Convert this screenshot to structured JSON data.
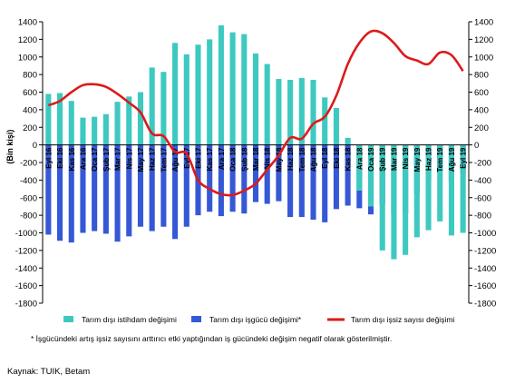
{
  "chart_data": {
    "type": "bar",
    "ylabel": "(Bin kişi)",
    "ylim": [
      -1800,
      1400
    ],
    "y_ticks": [
      1400,
      1200,
      1000,
      800,
      600,
      400,
      200,
      0,
      -200,
      -400,
      -600,
      -800,
      -1000,
      -1200,
      -1400,
      -1600,
      -1800
    ],
    "categories": [
      "Eyl 16",
      "Eki 16",
      "Kas 16",
      "Ara 16",
      "Oca 17",
      "Şub 17",
      "Mar 17",
      "Nis 17",
      "May 17",
      "Haz 17",
      "Tem 17",
      "Ağu 17",
      "Eyl 17",
      "Eki 17",
      "Kas 17",
      "Ara 17",
      "Oca 18",
      "Şub 18",
      "Mar 18",
      "Nis 18",
      "May 18",
      "Haz 18",
      "Tem 18",
      "Ağu 18",
      "Eyl 18",
      "Eki 18",
      "Kas 18",
      "Ara 18",
      "Oca 19",
      "Şub 19",
      "Mar 19",
      "Nis 19",
      "May 19",
      "Haz 19",
      "Tem 19",
      "Ağu 19",
      "Eyl 19"
    ],
    "x_tick_labels": [
      "Eyl 16",
      "Eki 16",
      "Kas 16",
      "Ara 16",
      "Oca 17",
      "Şub 17",
      "Mar 17",
      "Nis 17",
      "May 17",
      "Haz 17",
      "Tem 17",
      "Ağu 17",
      "Eyl 17",
      "Eki 17",
      "Kas 17",
      "Ara 17",
      "Oca 18",
      "Şub 18",
      "Mar 18",
      "Nis 18",
      "May 18",
      "Haz 18",
      "Tem 18",
      "Ağu 18",
      "Eyl 18",
      "Eki 18",
      "Kas 18",
      "Ara 18",
      "Oca 19",
      "Şub 19",
      "Mar 19",
      "Nis 19",
      "May 19",
      "Haz 19",
      "Tem 19",
      "Ağu 19",
      "Eyl 19"
    ],
    "series": [
      {
        "name": "Tarım dışı istihdam değişimi",
        "type": "bar",
        "color": "#3ec9c0",
        "values": [
          580,
          590,
          500,
          310,
          320,
          350,
          490,
          550,
          600,
          880,
          830,
          1160,
          1030,
          1140,
          1200,
          1360,
          1280,
          1260,
          1040,
          920,
          750,
          740,
          760,
          740,
          540,
          420,
          80,
          -520,
          -700,
          -1200,
          -1300,
          -1250,
          -1050,
          -970,
          -870,
          -1030,
          -1000
        ]
      },
      {
        "name": "Tarım dışı işgücü değişimi*",
        "type": "bar",
        "color": "#3558d6",
        "values": [
          -1020,
          -1090,
          -1110,
          -1000,
          -980,
          -1010,
          -1100,
          -1040,
          -930,
          -980,
          -930,
          -1070,
          -930,
          -800,
          -760,
          -810,
          -760,
          -780,
          -650,
          -670,
          -640,
          -820,
          -820,
          -850,
          -880,
          -730,
          -690,
          -720,
          -790,
          -680,
          -790,
          -780,
          -550,
          -400,
          -290,
          -420,
          -330
        ]
      },
      {
        "name": "Tarım dışı işsiz sayısı değişimi",
        "type": "line",
        "color": "#dd1a1a",
        "values": [
          450,
          500,
          600,
          680,
          690,
          660,
          580,
          480,
          370,
          130,
          100,
          -80,
          -100,
          -400,
          -500,
          -560,
          -570,
          -520,
          -440,
          -280,
          -120,
          80,
          70,
          240,
          320,
          560,
          920,
          1160,
          1290,
          1270,
          1160,
          1010,
          960,
          920,
          1050,
          1020,
          840
        ]
      }
    ],
    "legend_placement": "bottom",
    "grid": false
  },
  "footnote": "* İşgücündeki artış işsiz sayısını arttırıcı  etki yaptığından iş gücündeki değişim negatif olarak gösterilmiştir.",
  "source": "Kaynak: TUIK, Betam"
}
